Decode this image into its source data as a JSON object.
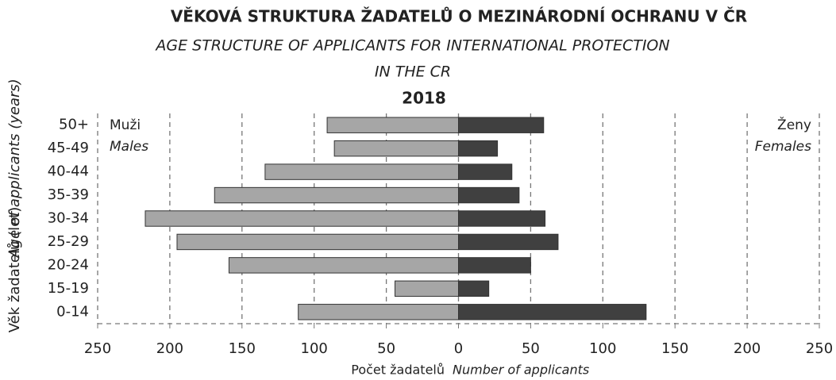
{
  "chart_data": {
    "type": "pyramid",
    "title": "VĚKOVÁ STRUKTURA ŽADATELŮ O MEZINÁRODNÍ OCHRANU V ČR",
    "subtitle": [
      "AGE STRUCTURE OF APPLICANTS FOR INTERNATIONAL PROTECTION",
      "IN THE CR"
    ],
    "year": "2018",
    "y_label": "Věk žadatelů (let)",
    "y_label_en": "Age of applicants (years)",
    "x_label": "Počet žadatelů",
    "x_label_en": "Number of applicants",
    "annotations": {
      "left": "Muži",
      "left_en": "Males",
      "right": "Ženy",
      "right_en": "Females"
    },
    "categories": [
      "50+",
      "45-49",
      "40-44",
      "35-39",
      "30-34",
      "25-29",
      "20-24",
      "15-19",
      "0-14"
    ],
    "series": [
      {
        "name": "Muži",
        "color": "#a6a6a6",
        "values": [
          -91,
          -86,
          -134,
          -169,
          -217,
          -195,
          -159,
          -44,
          -111
        ]
      },
      {
        "name": "Ženy",
        "color": "#404040",
        "values": [
          59,
          27,
          37,
          42,
          60,
          69,
          50,
          21,
          130
        ]
      }
    ],
    "xlim": [
      -250,
      250
    ],
    "xticks": [
      {
        "value": -250,
        "label": "250"
      },
      {
        "value": -200,
        "label": "200"
      },
      {
        "value": -150,
        "label": "150"
      },
      {
        "value": -100,
        "label": "100"
      },
      {
        "value": -50,
        "label": "50"
      },
      0,
      50,
      100,
      150,
      200,
      250
    ],
    "grid": true
  }
}
